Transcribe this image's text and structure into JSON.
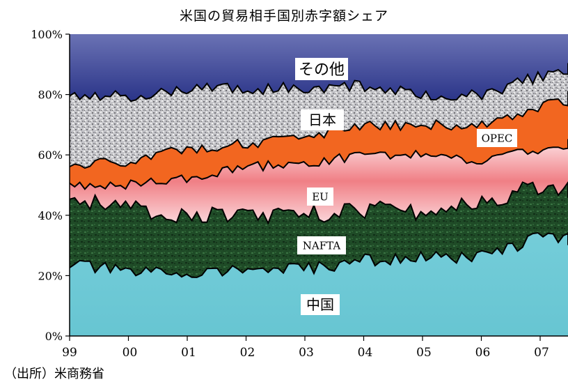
{
  "chart_data": {
    "type": "area",
    "stacked": true,
    "normalized_percent": true,
    "title": "米国の貿易相手国別赤字額シェア",
    "xlabel": "",
    "ylabel": "",
    "x_ticks": [
      "99",
      "00",
      "01",
      "02",
      "03",
      "04",
      "05",
      "06",
      "07"
    ],
    "x_range": [
      "1999-01",
      "2007-08"
    ],
    "y_ticks": [
      "0%",
      "20%",
      "40%",
      "60%",
      "80%",
      "100%"
    ],
    "ylim": [
      0,
      100
    ],
    "legend": "labels inside areas",
    "note": "approximate cumulative boundaries (top edge of each band, %) read at each year start",
    "series": [
      {
        "name": "中国",
        "color": "#6ecad6",
        "values": [
          24,
          21,
          21,
          22,
          22,
          25,
          26,
          26,
          33,
          32
        ]
      },
      {
        "name": "NAFTA",
        "color": "#1e4a26",
        "values": [
          46,
          42,
          40,
          40,
          40,
          42,
          41,
          44,
          50,
          48
        ]
      },
      {
        "name": "EU",
        "color": "#f07f85",
        "values": [
          50,
          50,
          52,
          56,
          57,
          60,
          60,
          58,
          62,
          64
        ]
      },
      {
        "name": "OPEC",
        "color": "#f26620",
        "values": [
          56,
          58,
          62,
          64,
          65,
          70,
          70,
          70,
          76,
          80
        ]
      },
      {
        "name": "日本",
        "color": "#b9b9bd",
        "values": [
          80,
          79,
          82,
          82,
          82,
          83,
          80,
          80,
          86,
          89
        ]
      },
      {
        "name": "その他",
        "color": "#3b4898",
        "values": [
          100,
          100,
          100,
          100,
          100,
          100,
          100,
          100,
          100,
          100
        ]
      }
    ]
  },
  "source": "（出所）米商務省"
}
